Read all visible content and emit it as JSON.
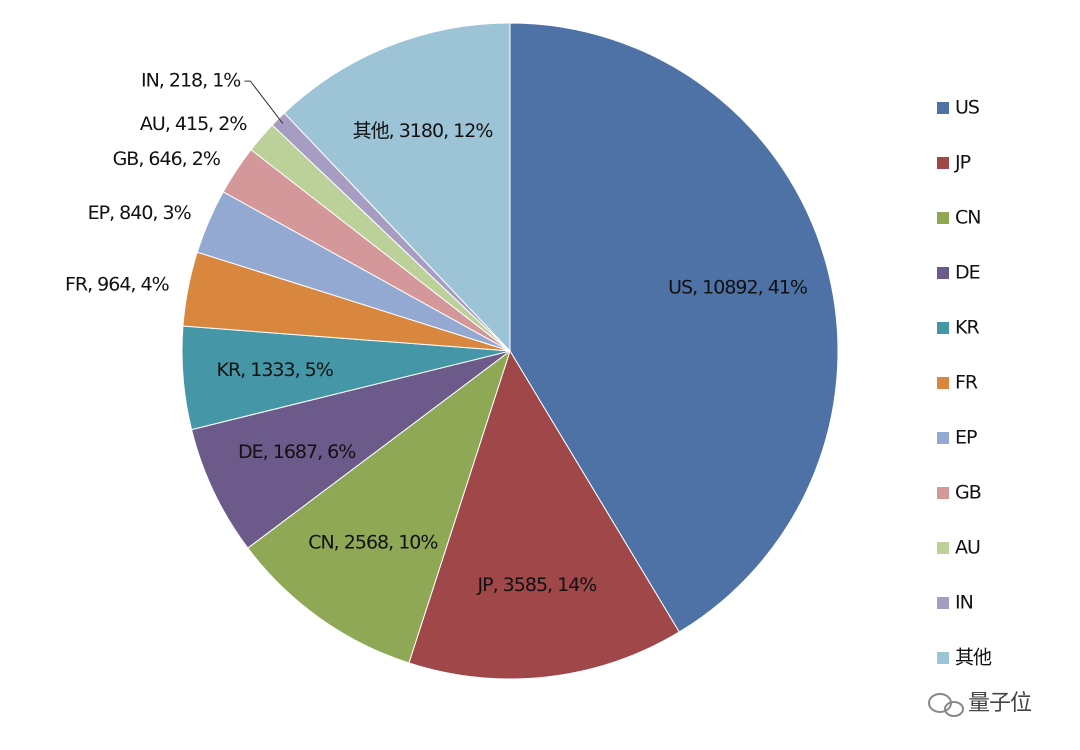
{
  "chart_data": {
    "type": "pie",
    "categories": [
      "US",
      "JP",
      "CN",
      "DE",
      "KR",
      "FR",
      "EP",
      "GB",
      "AU",
      "IN",
      "其他"
    ],
    "values": [
      10892,
      3585,
      2568,
      1687,
      1333,
      964,
      840,
      646,
      415,
      218,
      3180
    ],
    "value_labels": [
      "US, 10892, 41%",
      "JP, 3585, 14%",
      "CN, 2568, 10%",
      "DE, 1687, 6%",
      "KR, 1333, 5%",
      "FR, 964, 4%",
      "EP, 840, 3%",
      "GB, 646, 2%",
      "AU, 415, 2%",
      "IN, 218, 1%",
      "其他, 3180, 12%"
    ],
    "colors": [
      "#4e72a6",
      "#a0474a",
      "#8fa856",
      "#6c5a8a",
      "#4597a8",
      "#d9863f",
      "#93a9d1",
      "#d4989a",
      "#bcd09a",
      "#a79dc2",
      "#9dc4d6"
    ],
    "legend": "right"
  },
  "watermark": "量子位"
}
